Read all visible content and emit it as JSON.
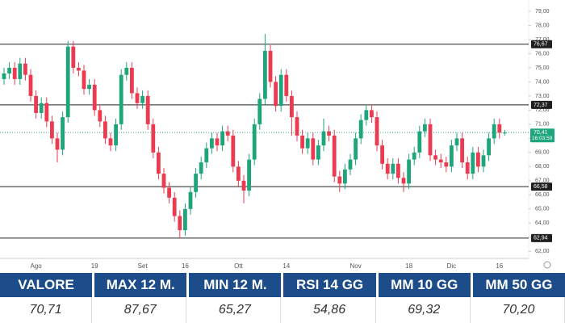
{
  "chart_data": {
    "type": "candlestick",
    "ylim": [
      61.5,
      79.8
    ],
    "yticks": [
      {
        "value": 62,
        "label": "62,00"
      },
      {
        "value": 63,
        "label": "63,00"
      },
      {
        "value": 64,
        "label": "64,00"
      },
      {
        "value": 65,
        "label": "65,00"
      },
      {
        "value": 66,
        "label": "66,00"
      },
      {
        "value": 67,
        "label": "67,00"
      },
      {
        "value": 68,
        "label": "68,00"
      },
      {
        "value": 69,
        "label": "69,00"
      },
      {
        "value": 70,
        "label": "70,00"
      },
      {
        "value": 71,
        "label": "71,00"
      },
      {
        "value": 72,
        "label": "72,00"
      },
      {
        "value": 73,
        "label": "73,00"
      },
      {
        "value": 74,
        "label": "74,00"
      },
      {
        "value": 75,
        "label": "75,00"
      },
      {
        "value": 76,
        "label": "76,00"
      },
      {
        "value": 77,
        "label": "77,00"
      },
      {
        "value": 78,
        "label": "78,00"
      },
      {
        "value": 79,
        "label": "79,00"
      }
    ],
    "categories": [
      null,
      null,
      null,
      null,
      null,
      null,
      "Ago",
      null,
      null,
      null,
      null,
      null,
      null,
      null,
      null,
      null,
      null,
      "19",
      null,
      null,
      null,
      null,
      null,
      null,
      null,
      null,
      "Set",
      null,
      null,
      null,
      null,
      null,
      null,
      null,
      "16",
      null,
      null,
      null,
      null,
      null,
      null,
      null,
      null,
      null,
      "Ott",
      null,
      null,
      null,
      null,
      null,
      null,
      null,
      null,
      "14",
      null,
      null,
      null,
      null,
      null,
      null,
      null,
      null,
      null,
      null,
      null,
      null,
      "Nov",
      null,
      null,
      null,
      null,
      null,
      null,
      null,
      null,
      null,
      "18",
      null,
      null,
      null,
      null,
      null,
      null,
      null,
      "Dic",
      null,
      null,
      null,
      null,
      null,
      null,
      null,
      null,
      "16",
      null
    ],
    "open": [
      74.2,
      74.6,
      75.0,
      74.2,
      75.3,
      74.5,
      73.0,
      71.8,
      72.5,
      71.2,
      70.0,
      69.2,
      71.5,
      76.5,
      75.0,
      74.8,
      73.5,
      73.8,
      72.0,
      71.2,
      70.0,
      69.5,
      71.0,
      74.5,
      75.0,
      73.2,
      72.5,
      73.0,
      71.0,
      69.0,
      67.5,
      66.5,
      65.8,
      64.5,
      63.5,
      65.0,
      66.2,
      67.5,
      68.3,
      69.3,
      70.0,
      69.5,
      70.5,
      70.2,
      68.0,
      67.0,
      66.3,
      68.5,
      71.0,
      72.8,
      76.2,
      74.0,
      72.3,
      74.5,
      73.0,
      71.5,
      70.2,
      69.3,
      70.0,
      68.5,
      69.5,
      70.5,
      70.2,
      67.3,
      66.8,
      67.8,
      68.5,
      70.0,
      71.3,
      72.0,
      71.5,
      69.5,
      68.2,
      67.5,
      68.2,
      67.2,
      66.8,
      68.5,
      69.0,
      70.5,
      71.0,
      68.8,
      68.5,
      68.3,
      68.0,
      69.5,
      70.0,
      68.3,
      67.5,
      69.0,
      68.0,
      68.8,
      70.0,
      71.0,
      70.4
    ],
    "high": [
      75.0,
      75.4,
      75.4,
      75.7,
      75.7,
      74.9,
      73.4,
      72.9,
      72.9,
      71.6,
      70.4,
      71.9,
      76.9,
      76.9,
      75.4,
      75.2,
      74.2,
      74.2,
      72.4,
      71.6,
      70.4,
      71.4,
      74.9,
      75.4,
      75.4,
      73.6,
      73.4,
      73.4,
      71.4,
      69.4,
      67.9,
      66.9,
      66.2,
      64.9,
      65.4,
      66.6,
      67.9,
      68.7,
      69.7,
      70.4,
      70.4,
      70.9,
      70.9,
      70.6,
      68.4,
      67.4,
      68.9,
      71.4,
      73.2,
      77.4,
      76.6,
      74.4,
      74.9,
      74.9,
      73.4,
      71.9,
      70.6,
      70.4,
      70.4,
      69.9,
      71.4,
      70.9,
      70.6,
      67.7,
      68.2,
      68.9,
      70.4,
      71.7,
      72.4,
      72.4,
      71.9,
      69.9,
      68.6,
      68.6,
      68.6,
      67.6,
      68.9,
      69.4,
      70.9,
      71.4,
      71.4,
      69.2,
      68.9,
      68.7,
      69.9,
      70.4,
      70.4,
      68.7,
      69.4,
      69.4,
      69.2,
      70.4,
      71.4,
      71.4,
      70.6
    ],
    "low": [
      73.8,
      74.2,
      73.8,
      73.8,
      74.1,
      72.6,
      71.4,
      71.4,
      70.8,
      69.6,
      68.3,
      68.8,
      71.1,
      74.6,
      74.4,
      73.1,
      73.1,
      71.6,
      70.8,
      69.6,
      69.1,
      69.1,
      70.6,
      74.1,
      72.8,
      72.1,
      72.1,
      70.6,
      68.6,
      67.1,
      66.1,
      65.4,
      64.1,
      63.0,
      63.1,
      64.6,
      65.8,
      67.1,
      67.9,
      68.9,
      69.1,
      69.1,
      69.8,
      67.6,
      66.6,
      65.4,
      65.9,
      68.1,
      70.6,
      72.4,
      73.6,
      71.9,
      71.9,
      72.6,
      70.2,
      69.8,
      68.9,
      68.9,
      68.1,
      68.1,
      69.1,
      69.8,
      66.9,
      66.2,
      66.4,
      67.4,
      68.1,
      69.6,
      70.9,
      71.1,
      69.1,
      67.8,
      67.1,
      67.1,
      66.8,
      66.2,
      66.4,
      68.1,
      68.6,
      70.1,
      68.4,
      68.1,
      67.9,
      67.6,
      67.6,
      69.1,
      67.9,
      67.1,
      67.1,
      67.6,
      67.6,
      68.4,
      69.6,
      70.0,
      70.2
    ],
    "close": [
      74.6,
      75.0,
      74.2,
      75.3,
      74.5,
      73.0,
      71.8,
      72.5,
      71.2,
      70.0,
      69.2,
      71.5,
      76.5,
      75.0,
      74.8,
      73.5,
      73.8,
      72.0,
      71.2,
      70.0,
      69.5,
      71.0,
      74.5,
      75.0,
      73.2,
      72.5,
      73.0,
      71.0,
      69.0,
      67.5,
      66.5,
      65.8,
      64.5,
      63.5,
      65.0,
      66.2,
      67.5,
      68.3,
      69.3,
      70.0,
      69.5,
      70.5,
      70.2,
      68.0,
      67.0,
      66.3,
      68.5,
      71.0,
      72.8,
      76.2,
      74.0,
      72.3,
      74.5,
      73.0,
      71.5,
      70.2,
      69.3,
      70.0,
      68.5,
      69.5,
      70.5,
      70.2,
      67.3,
      66.8,
      67.8,
      68.5,
      70.0,
      71.3,
      72.0,
      71.5,
      69.5,
      68.2,
      67.5,
      68.2,
      67.2,
      66.8,
      68.5,
      69.0,
      70.5,
      71.0,
      68.8,
      68.5,
      68.3,
      68.0,
      69.5,
      70.0,
      68.3,
      67.5,
      69.0,
      68.0,
      68.8,
      70.0,
      71.0,
      70.4,
      70.41
    ],
    "up_color": "#1ea57c",
    "down_color": "#ec3a50",
    "levels": [
      {
        "value": 76.67,
        "label": "76,67"
      },
      {
        "value": 72.37,
        "label": "72,37"
      },
      {
        "value": 66.58,
        "label": "66,58"
      },
      {
        "value": 62.94,
        "label": "62,94"
      }
    ],
    "last_price": {
      "value": 70.41,
      "label": "70,41",
      "time": "16:03:59"
    }
  },
  "table": {
    "headers": [
      "VALORE",
      "MAX 12 M.",
      "MIN 12 M.",
      "RSI 14 GG",
      "MM 10 GG",
      "MM 50 GG"
    ],
    "rows": [
      [
        "70,71",
        "87,67",
        "65,27",
        "54,86",
        "69,32",
        "70,20"
      ]
    ]
  }
}
